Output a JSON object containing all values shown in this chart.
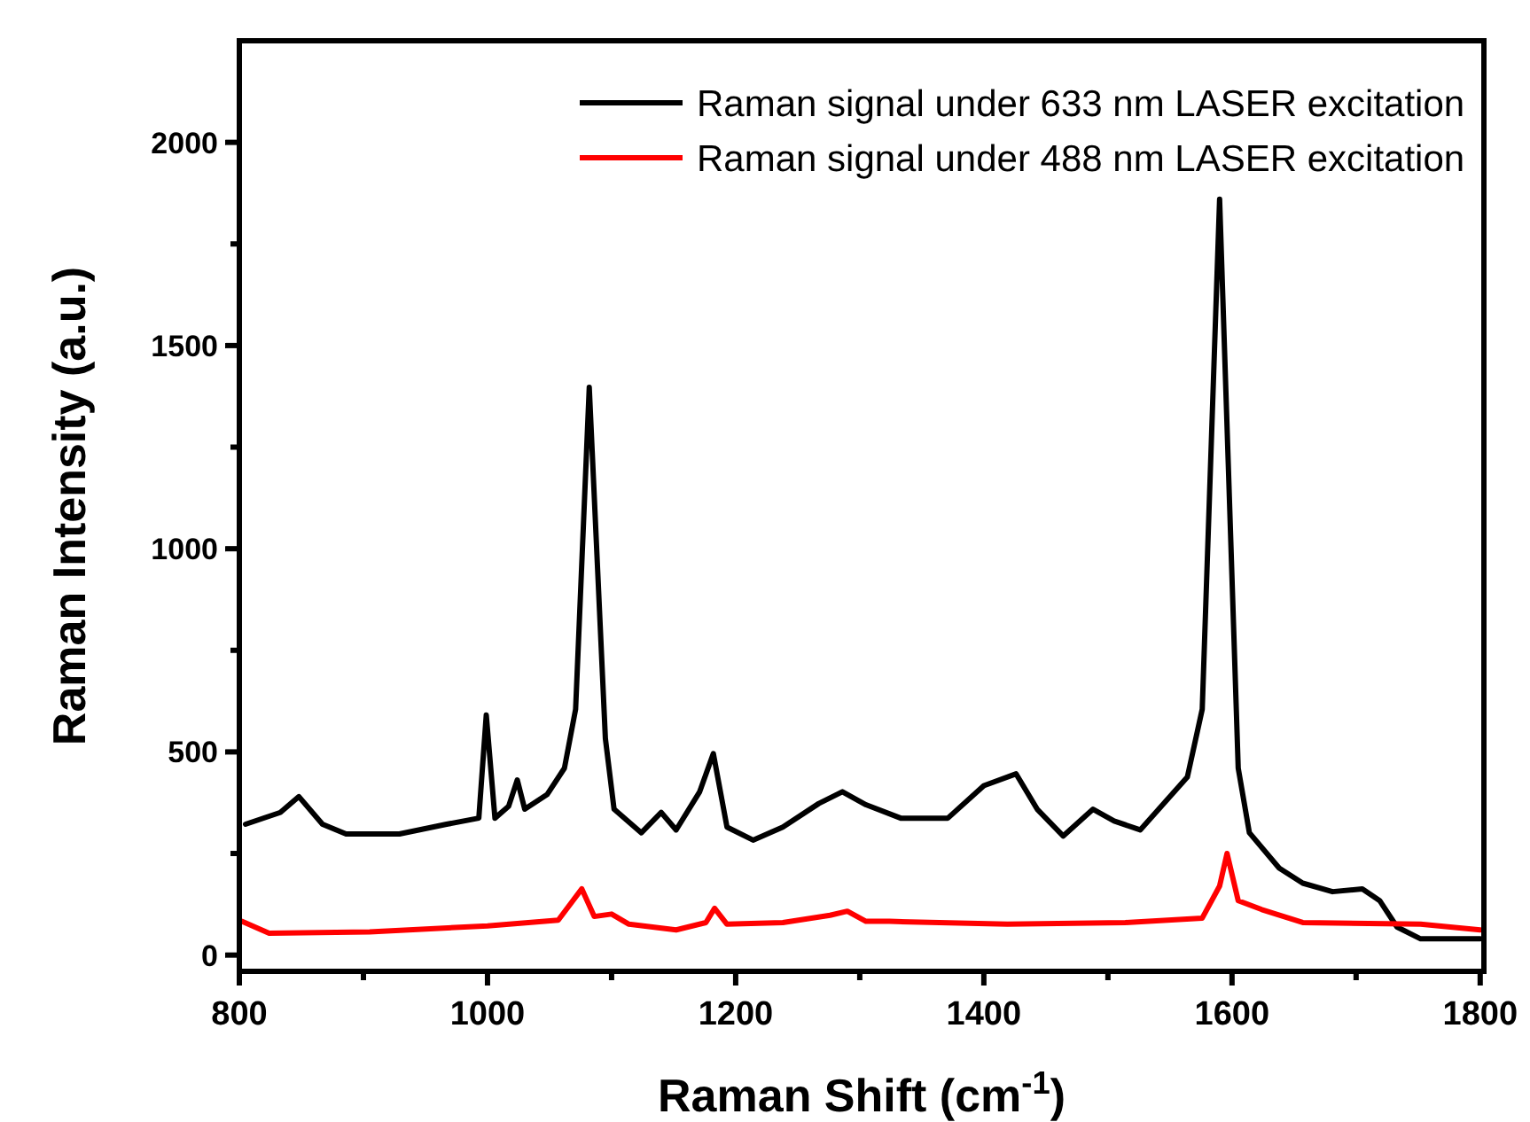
{
  "chart_data": {
    "type": "line",
    "xlabel": "Raman Shift (cm$^{-1}$)",
    "ylabel": "Raman Intensity (a.u.)",
    "xlim": [
      800,
      1803
    ],
    "ylim": [
      -40,
      2250
    ],
    "xticks": [
      800,
      {
        "value": 900,
        "label": null
      },
      1000,
      {
        "value": 1100,
        "label": null
      },
      1200,
      {
        "value": 1300,
        "label": null
      },
      1400,
      {
        "value": 1500,
        "label": null
      },
      1600,
      {
        "value": 1700,
        "label": null
      },
      1800
    ],
    "yticks": [
      0,
      {
        "value": 250,
        "label": null
      },
      500,
      {
        "value": 750,
        "label": null
      },
      1000,
      {
        "value": 1250,
        "label": null
      },
      1500,
      {
        "value": 1750,
        "label": null
      },
      2000
    ],
    "legend": "top right",
    "grid": false,
    "line_style": "solid",
    "marker": "none",
    "series": [
      {
        "name": "Raman signal under 633 nm LASER excitation",
        "color": "#000000",
        "x": [
          805,
          833,
          848,
          867,
          886,
          929,
          967,
          993,
          999,
          1006,
          1017,
          1024,
          1030,
          1048,
          1062,
          1071,
          1082,
          1095,
          1102,
          1124,
          1140,
          1152,
          1171,
          1182,
          1193,
          1214,
          1238,
          1267,
          1286,
          1305,
          1333,
          1371,
          1400,
          1426,
          1443,
          1464,
          1488,
          1505,
          1526,
          1543,
          1564,
          1576,
          1590,
          1605,
          1614,
          1638,
          1657,
          1681,
          1705,
          1719,
          1733,
          1752,
          1800
        ],
        "values": [
          322,
          351,
          390,
          322,
          298,
          298,
          322,
          337,
          591,
          337,
          366,
          431,
          359,
          395,
          460,
          605,
          1397,
          533,
          359,
          301,
          351,
          308,
          402,
          496,
          315,
          283,
          315,
          373,
          402,
          370,
          337,
          337,
          417,
          446,
          359,
          293,
          359,
          330,
          308,
          366,
          438,
          605,
          1860,
          460,
          301,
          214,
          177,
          156,
          163,
          134,
          69,
          40,
          40
        ]
      },
      {
        "name": "Raman signal under 488 nm LASER excitation",
        "color": "#ff0000",
        "x": [
          802,
          824,
          905,
          1000,
          1057,
          1076,
          1086,
          1100,
          1114,
          1152,
          1176,
          1183,
          1193,
          1238,
          1276,
          1290,
          1305,
          1324,
          1419,
          1514,
          1576,
          1590,
          1596,
          1605,
          1624,
          1657,
          1752,
          1800
        ],
        "values": [
          83,
          54,
          57,
          72,
          86,
          163,
          95,
          101,
          76,
          62,
          80,
          115,
          76,
          80,
          98,
          108,
          83,
          83,
          76,
          80,
          91,
          170,
          250,
          134,
          112,
          80,
          76,
          62
        ]
      }
    ]
  }
}
